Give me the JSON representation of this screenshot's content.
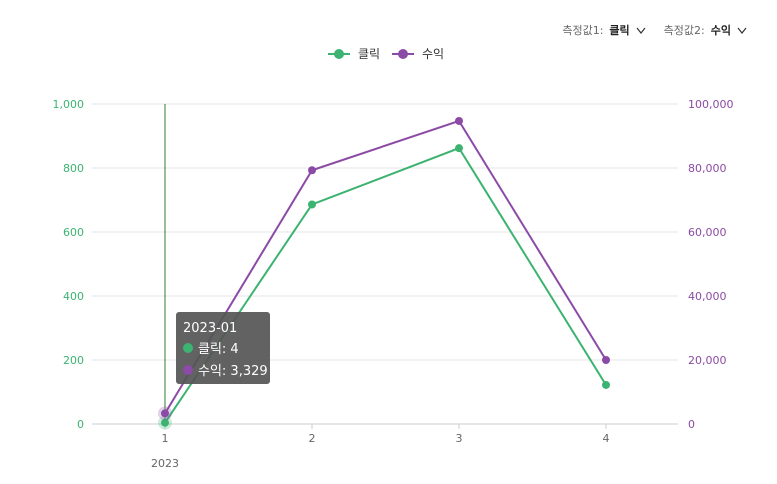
{
  "controls": {
    "measure1_label": "측정값1:",
    "measure1_value": "클릭",
    "measure2_label": "측정값2:",
    "measure2_value": "수익"
  },
  "colors": {
    "clicks": "#3cb371",
    "revenue": "#8b4aa6",
    "cursor": "#2e7d32",
    "grid": "#e5e5e5",
    "tooltip_bg": "#555555"
  },
  "tooltip": {
    "title": "2023-01",
    "line1": "클릭: 4",
    "line2": "수익: 3,329"
  },
  "chart_data": {
    "type": "line",
    "categories": [
      "1",
      "2",
      "3",
      "4"
    ],
    "x_group_label": "2023",
    "series": [
      {
        "name": "클릭",
        "axis": "left",
        "values": [
          4,
          686,
          862,
          122
        ]
      },
      {
        "name": "수익",
        "axis": "right",
        "values": [
          3329,
          79300,
          94700,
          20000
        ]
      }
    ],
    "y_left": {
      "min": 0,
      "max": 1000,
      "ticks": [
        "0",
        "200",
        "400",
        "600",
        "800",
        "1,000"
      ]
    },
    "y_right": {
      "min": 0,
      "max": 100000,
      "ticks": [
        "0",
        "20,000",
        "40,000",
        "60,000",
        "80,000",
        "100,000"
      ]
    },
    "legend_position": "top-center",
    "grid": true,
    "highlight_index": 0
  }
}
